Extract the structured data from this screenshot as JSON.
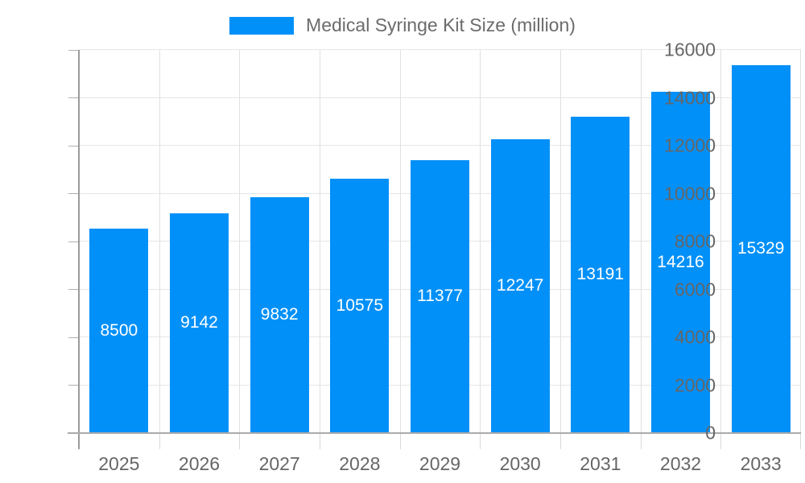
{
  "legend": {
    "label": "Medical Syringe Kit Size (million)",
    "swatch_color": "#0190f8"
  },
  "chart_data": {
    "type": "bar",
    "title": "Medical Syringe Kit Size (million)",
    "categories": [
      "2025",
      "2026",
      "2027",
      "2028",
      "2029",
      "2030",
      "2031",
      "2032",
      "2033"
    ],
    "values": [
      8500,
      9142,
      9832,
      10575,
      11377,
      12247,
      13191,
      14216,
      15329
    ],
    "value_labels": [
      "8500",
      "9142",
      "9832",
      "10575",
      "11377",
      "12247",
      "13191",
      "14216",
      "15329"
    ],
    "xlabel": "",
    "ylabel": "",
    "ylim": [
      0,
      16000
    ],
    "ytick_interval": 2000,
    "ytick_labels": [
      "0",
      "2000",
      "4000",
      "6000",
      "8000",
      "10000",
      "12000",
      "14000",
      "16000"
    ],
    "grid": true,
    "legend_position": "top",
    "bar_color": "#0190f8",
    "bar_label_color": "#ffffff",
    "axis_text_color": "#666666",
    "grid_color": "#e6e6e6",
    "axis_line_color": "#9a9a9a"
  }
}
